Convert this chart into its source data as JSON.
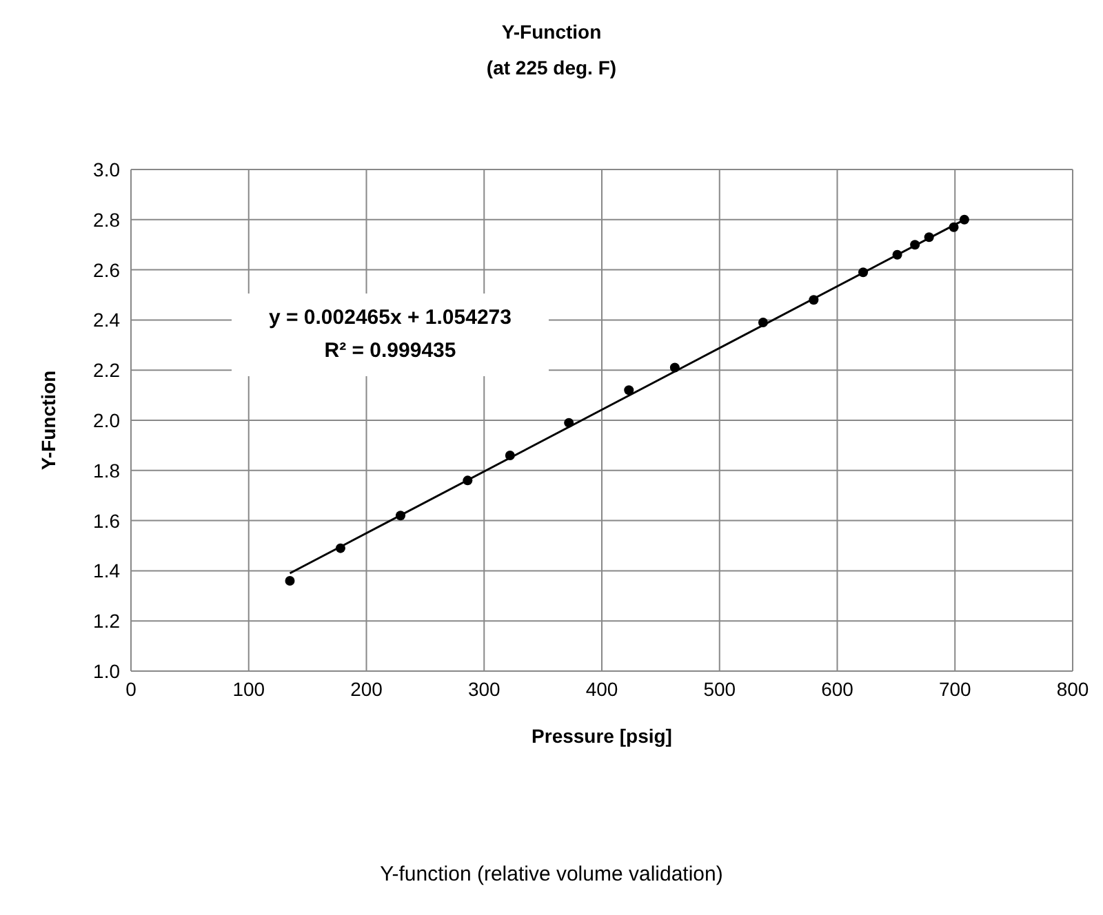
{
  "chart_data": {
    "type": "scatter",
    "title": "Y-Function",
    "subtitle": "(at 225 deg. F)",
    "xlabel": "Pressure [psig]",
    "ylabel": "Y-Function",
    "annotations": [
      "y = 0.002465x + 1.054273\nR² = 0.999435",
      "Y-function (relative volume validation)"
    ],
    "series": [
      {
        "color": "#000000",
        "marker": "circle",
        "x": [
          135,
          178,
          229,
          286,
          322,
          372,
          423,
          462,
          537,
          580,
          622,
          651,
          666,
          678,
          699,
          708
        ],
        "values": [
          1.36,
          1.49,
          1.62,
          1.76,
          1.86,
          1.99,
          2.12,
          2.21,
          2.39,
          2.48,
          2.59,
          2.66,
          2.7,
          2.73,
          2.77,
          2.8
        ]
      },
      {
        "type": "line",
        "color": "#000000",
        "marker": "none",
        "x": [
          135,
          708
        ],
        "values": [
          1.39,
          2.8
        ]
      }
    ],
    "xlim": [
      0,
      800
    ],
    "xticks": [
      0,
      100,
      200,
      300,
      400,
      500,
      600,
      700,
      800
    ],
    "ylim": [
      1.0,
      3.0
    ],
    "yticks": [
      {
        "value": 1,
        "label": "1.0"
      },
      1.2,
      1.4,
      1.6,
      1.8,
      {
        "value": 2,
        "label": "2.0"
      },
      2.2,
      2.4,
      2.6,
      2.8,
      {
        "value": 3,
        "label": "3.0"
      }
    ],
    "grid": true,
    "legend": false
  }
}
